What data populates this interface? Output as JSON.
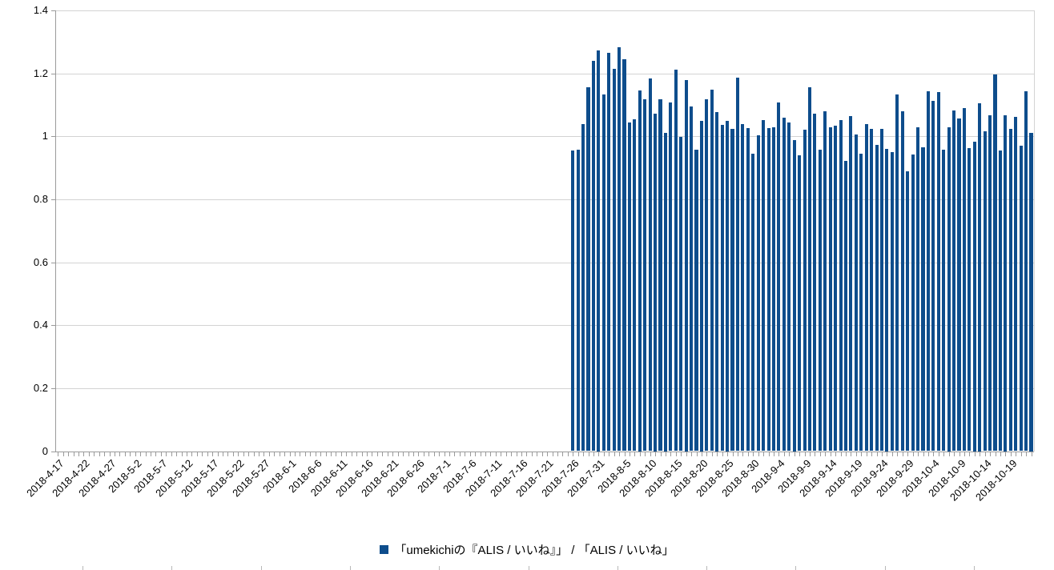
{
  "chart_data": {
    "type": "bar",
    "title": "",
    "xlabel": "",
    "ylabel": "",
    "ylim": [
      0,
      1.4
    ],
    "ytick_labels": [
      "0",
      "0.2",
      "0.4",
      "0.6",
      "0.8",
      "1",
      "1.2",
      "1.4"
    ],
    "grid": true,
    "legend_position": "bottom",
    "x_axis": {
      "start": "2018-4-17",
      "total_days": 190,
      "label_interval_days": 5,
      "tick_labels": [
        "2018-4-17",
        "2018-4-22",
        "2018-4-27",
        "2018-5-2",
        "2018-5-7",
        "2018-5-12",
        "2018-5-17",
        "2018-5-22",
        "2018-5-27",
        "2018-6-1",
        "2018-6-6",
        "2018-6-11",
        "2018-6-16",
        "2018-6-21",
        "2018-6-26",
        "2018-7-1",
        "2018-7-6",
        "2018-7-11",
        "2018-7-16",
        "2018-7-21",
        "2018-7-26",
        "2018-7-31",
        "2018-8-5",
        "2018-8-10",
        "2018-8-15",
        "2018-8-20",
        "2018-8-25",
        "2018-8-30",
        "2018-9-4",
        "2018-9-9",
        "2018-9-14",
        "2018-9-19",
        "2018-9-24",
        "2018-9-29",
        "2018-10-4",
        "2018-10-9",
        "2018-10-14",
        "2018-10-19"
      ]
    },
    "series": [
      {
        "name": "「umekichiの『ALIS / いいね』」 / 「ALIS / いいね」",
        "start_date": "2018-7-26",
        "end_date": "2018-10-23",
        "start_day_index": 100,
        "values": [
          0.954,
          0.957,
          1.038,
          1.157,
          1.24,
          1.274,
          1.132,
          1.266,
          1.215,
          1.282,
          1.244,
          1.043,
          1.053,
          1.147,
          1.117,
          1.183,
          1.072,
          1.117,
          1.011,
          1.107,
          1.211,
          0.998,
          1.18,
          1.094,
          0.958,
          1.049,
          1.117,
          1.149,
          1.077,
          1.036,
          1.049,
          1.023,
          1.187,
          1.038,
          1.026,
          0.945,
          1.003,
          1.051,
          1.026,
          1.028,
          1.108,
          1.06,
          1.045,
          0.988,
          0.939,
          1.022,
          1.155,
          1.071,
          0.958,
          1.079,
          1.028,
          1.034,
          1.051,
          0.921,
          1.064,
          1.005,
          0.945,
          1.038,
          1.023,
          0.972,
          1.024,
          0.96,
          0.95,
          1.134,
          1.079,
          0.888,
          0.942,
          1.028,
          0.966,
          1.142,
          1.112,
          1.141,
          0.958,
          1.03,
          1.081,
          1.057,
          1.089,
          0.962,
          0.983,
          1.105,
          1.015,
          1.066,
          1.197,
          0.954,
          1.068,
          1.023,
          1.061,
          0.971,
          1.142,
          1.011
        ]
      }
    ],
    "colors": {
      "bar": "#0e4d8c",
      "grid": "#d3d3d3",
      "axis": "#9a9a9a",
      "label": "#000000",
      "background": "#ffffff",
      "bottom_strip_tick": "#b8b8b8"
    }
  },
  "legend": {
    "marker": "square",
    "marker_color": "#0e4d8c",
    "label": "「umekichiの『ALIS / いいね』」 / 「ALIS / いいね」"
  }
}
